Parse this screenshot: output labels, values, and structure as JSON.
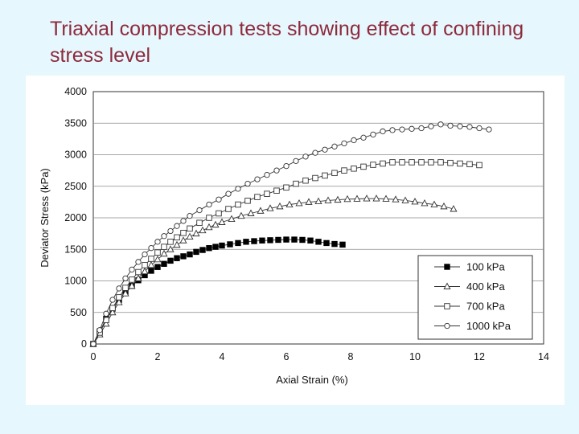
{
  "slide": {
    "title": "Triaxial compression tests showing effect of confining stress level"
  },
  "chart_data": {
    "type": "line",
    "title": "",
    "xlabel": "Axial Strain (%)",
    "ylabel": "Deviator Stress (kPa)",
    "xlim": [
      0,
      14
    ],
    "ylim": [
      0,
      4000
    ],
    "xticks": [
      0,
      2,
      4,
      6,
      8,
      10,
      12,
      14
    ],
    "yticks": [
      0,
      500,
      1000,
      1500,
      2000,
      2500,
      3000,
      3500,
      4000
    ],
    "grid": "horizontal",
    "legend_position": "bottom-right",
    "series": [
      {
        "name": "100 kPa",
        "marker": "filled-square",
        "x": [
          0,
          0.2,
          0.4,
          0.6,
          0.8,
          1.0,
          1.2,
          1.4,
          1.6,
          1.8,
          2.0,
          2.2,
          2.4,
          2.6,
          2.8,
          3.0,
          3.2,
          3.4,
          3.6,
          3.8,
          4.0,
          4.25,
          4.5,
          4.75,
          5.0,
          5.25,
          5.5,
          5.75,
          6.0,
          6.25,
          6.5,
          6.75,
          7.0,
          7.25,
          7.5,
          7.75
        ],
        "y": [
          0,
          200,
          400,
          560,
          700,
          820,
          920,
          1010,
          1090,
          1160,
          1220,
          1270,
          1320,
          1360,
          1390,
          1420,
          1460,
          1490,
          1520,
          1540,
          1560,
          1580,
          1600,
          1620,
          1630,
          1640,
          1645,
          1650,
          1655,
          1655,
          1650,
          1640,
          1620,
          1600,
          1585,
          1575
        ]
      },
      {
        "name": "400 kPa",
        "marker": "open-triangle",
        "x": [
          0,
          0.2,
          0.4,
          0.6,
          0.8,
          1.0,
          1.2,
          1.4,
          1.6,
          1.8,
          2.0,
          2.2,
          2.4,
          2.6,
          2.8,
          3.0,
          3.2,
          3.4,
          3.6,
          3.8,
          4.0,
          4.3,
          4.6,
          4.9,
          5.2,
          5.5,
          5.8,
          6.1,
          6.4,
          6.7,
          7.0,
          7.3,
          7.6,
          7.9,
          8.2,
          8.5,
          8.8,
          9.1,
          9.4,
          9.7,
          10.0,
          10.3,
          10.6,
          10.9,
          11.2
        ],
        "y": [
          0,
          150,
          320,
          500,
          660,
          800,
          920,
          1040,
          1150,
          1250,
          1340,
          1430,
          1500,
          1570,
          1640,
          1700,
          1750,
          1800,
          1850,
          1890,
          1930,
          1980,
          2030,
          2070,
          2110,
          2150,
          2180,
          2210,
          2230,
          2250,
          2260,
          2275,
          2285,
          2295,
          2300,
          2305,
          2305,
          2300,
          2290,
          2275,
          2255,
          2230,
          2210,
          2180,
          2140
        ]
      },
      {
        "name": "700 kPa",
        "marker": "open-square",
        "x": [
          0,
          0.2,
          0.4,
          0.6,
          0.8,
          1.0,
          1.2,
          1.4,
          1.6,
          1.8,
          2.0,
          2.2,
          2.4,
          2.6,
          2.8,
          3.0,
          3.3,
          3.6,
          3.9,
          4.2,
          4.5,
          4.8,
          5.1,
          5.4,
          5.7,
          6.0,
          6.3,
          6.6,
          6.9,
          7.2,
          7.5,
          7.8,
          8.1,
          8.4,
          8.7,
          9.0,
          9.3,
          9.6,
          9.9,
          10.2,
          10.5,
          10.8,
          11.1,
          11.4,
          11.7,
          12.0
        ],
        "y": [
          0,
          180,
          380,
          570,
          740,
          890,
          1020,
          1140,
          1250,
          1350,
          1450,
          1540,
          1620,
          1690,
          1760,
          1830,
          1920,
          2000,
          2070,
          2140,
          2210,
          2270,
          2330,
          2380,
          2430,
          2480,
          2540,
          2590,
          2630,
          2670,
          2710,
          2750,
          2780,
          2810,
          2840,
          2860,
          2880,
          2880,
          2880,
          2880,
          2880,
          2880,
          2870,
          2860,
          2850,
          2835
        ]
      },
      {
        "name": "1000 kPa",
        "marker": "open-circle",
        "x": [
          0,
          0.2,
          0.4,
          0.6,
          0.8,
          1.0,
          1.2,
          1.4,
          1.6,
          1.8,
          2.0,
          2.2,
          2.4,
          2.6,
          2.8,
          3.0,
          3.3,
          3.6,
          3.9,
          4.2,
          4.5,
          4.8,
          5.1,
          5.4,
          5.7,
          6.0,
          6.3,
          6.6,
          6.9,
          7.2,
          7.5,
          7.8,
          8.1,
          8.4,
          8.7,
          9.0,
          9.3,
          9.6,
          9.9,
          10.2,
          10.5,
          10.8,
          11.1,
          11.4,
          11.7,
          12.0,
          12.3
        ],
        "y": [
          0,
          220,
          480,
          700,
          880,
          1040,
          1180,
          1300,
          1420,
          1520,
          1620,
          1710,
          1790,
          1870,
          1950,
          2030,
          2120,
          2210,
          2290,
          2380,
          2460,
          2540,
          2610,
          2680,
          2750,
          2820,
          2900,
          2970,
          3030,
          3080,
          3130,
          3180,
          3230,
          3270,
          3320,
          3370,
          3390,
          3400,
          3410,
          3420,
          3450,
          3480,
          3460,
          3450,
          3440,
          3420,
          3400
        ]
      }
    ]
  }
}
